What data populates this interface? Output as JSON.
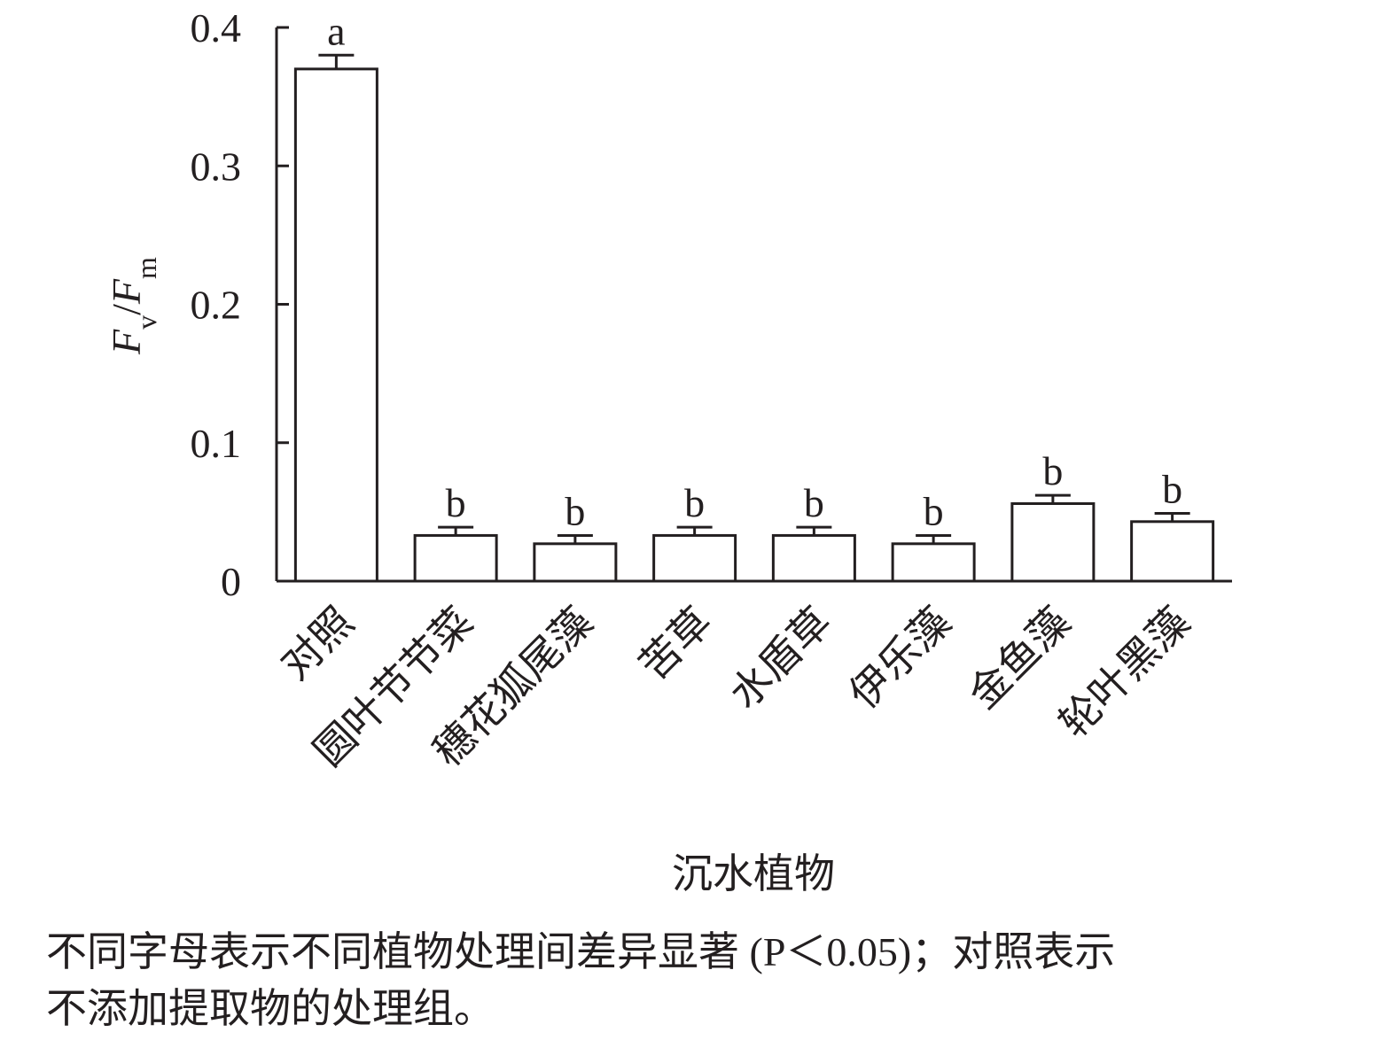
{
  "chart_data": {
    "type": "bar",
    "categories": [
      "对照",
      "圆叶节节菜",
      "穗花狐尾藻",
      "苦草",
      "水盾草",
      "伊乐藻",
      "金鱼藻",
      "轮叶黑藻"
    ],
    "values": [
      0.37,
      0.033,
      0.027,
      0.033,
      0.033,
      0.027,
      0.056,
      0.043
    ],
    "errors": [
      0.01,
      0.006,
      0.006,
      0.006,
      0.006,
      0.006,
      0.006,
      0.006
    ],
    "letters": [
      "a",
      "b",
      "b",
      "b",
      "b",
      "b",
      "b",
      "b"
    ],
    "color": "#ffffff",
    "ylim": [
      0,
      0.4
    ],
    "yticks": [
      0,
      0.1,
      0.2,
      0.3,
      0.4
    ],
    "y_label": [
      {
        "text": "F",
        "style": "italic"
      },
      {
        "text": "v",
        "style": "sub"
      },
      {
        "text": "/",
        "style": "normal"
      },
      {
        "text": "F",
        "style": "italic"
      },
      {
        "text": "m",
        "style": "sub"
      }
    ],
    "x_label": "沉水植物",
    "caption": [
      "不同字母表示不同植物处理间差异显著 (P＜0.05)；对照表示",
      "不添加提取物的处理组。"
    ]
  }
}
